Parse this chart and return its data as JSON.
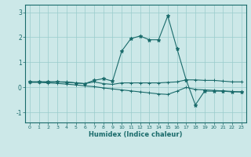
{
  "xlabel": "Humidex (Indice chaleur)",
  "background_color": "#cce8e8",
  "grid_color": "#99cccc",
  "line_color": "#1a6b6b",
  "xlim": [
    -0.5,
    23.5
  ],
  "ylim": [
    -1.4,
    3.3
  ],
  "yticks": [
    -1,
    0,
    1,
    2,
    3
  ],
  "xticks": [
    0,
    1,
    2,
    3,
    4,
    5,
    6,
    7,
    8,
    9,
    10,
    11,
    12,
    13,
    14,
    15,
    16,
    17,
    18,
    19,
    20,
    21,
    22,
    23
  ],
  "s1_x": [
    0,
    1,
    2,
    3,
    4,
    5,
    6,
    7,
    8,
    9,
    10,
    11,
    12,
    13,
    14,
    15,
    16,
    17,
    18,
    19,
    20,
    21,
    22,
    23
  ],
  "s1_y": [
    0.22,
    0.22,
    0.22,
    0.22,
    0.22,
    0.18,
    0.15,
    0.22,
    0.15,
    0.12,
    0.18,
    0.18,
    0.18,
    0.18,
    0.18,
    0.2,
    0.22,
    0.3,
    0.3,
    0.28,
    0.28,
    0.25,
    0.22,
    0.22
  ],
  "s2_x": [
    0,
    1,
    2,
    3,
    4,
    5,
    6,
    7,
    8,
    9,
    10,
    11,
    12,
    13,
    14,
    15,
    16,
    17,
    18,
    19,
    20,
    21,
    22,
    23
  ],
  "s2_y": [
    0.2,
    0.2,
    0.18,
    0.16,
    0.13,
    0.1,
    0.06,
    0.03,
    -0.02,
    -0.06,
    -0.1,
    -0.14,
    -0.18,
    -0.22,
    -0.26,
    -0.28,
    -0.15,
    0.0,
    -0.08,
    -0.1,
    -0.12,
    -0.14,
    -0.16,
    -0.18
  ],
  "s3_x": [
    0,
    1,
    2,
    3,
    4,
    5,
    6,
    7,
    8,
    9,
    10,
    11,
    12,
    13,
    14,
    15,
    16,
    17,
    18,
    19,
    20,
    21,
    22,
    23
  ],
  "s3_y": [
    0.22,
    0.22,
    0.22,
    0.22,
    0.2,
    0.18,
    0.15,
    0.28,
    0.35,
    0.25,
    1.45,
    1.95,
    2.05,
    1.9,
    1.9,
    2.85,
    1.55,
    0.3,
    -0.7,
    -0.15,
    -0.15,
    -0.15,
    -0.18,
    -0.18
  ]
}
